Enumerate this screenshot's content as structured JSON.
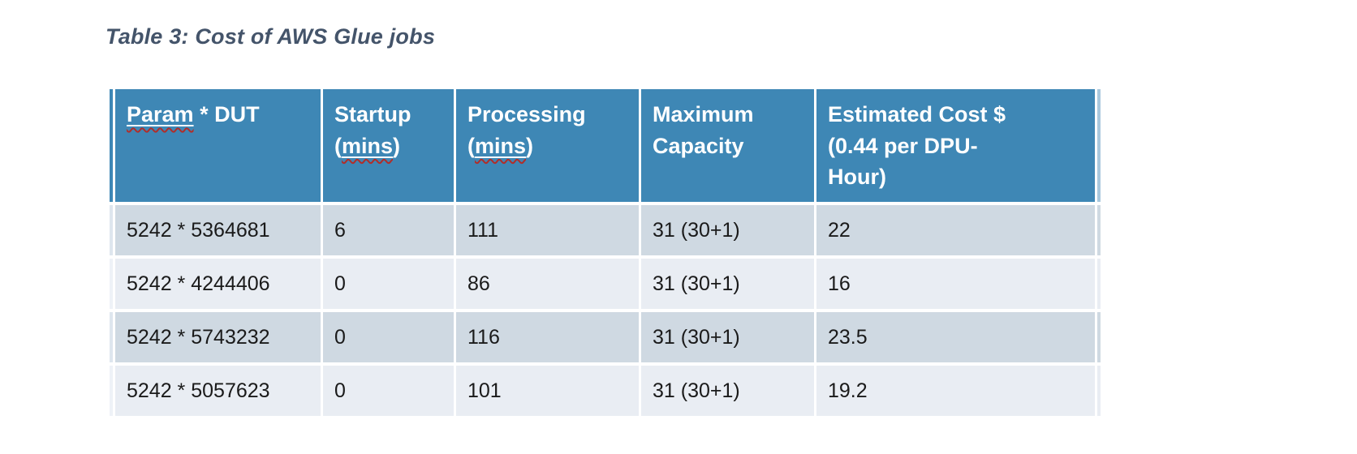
{
  "title": "Table 3: Cost of AWS Glue jobs",
  "table": {
    "header": [
      {
        "pre": "",
        "spell": "Param",
        "post": " * DUT"
      },
      {
        "pre": "Startup (",
        "spell": "mins",
        "post": ")"
      },
      {
        "pre": "Processing (",
        "spell": "mins",
        "post": ")"
      },
      {
        "pre": "Maximum Capacity",
        "spell": "",
        "post": ""
      },
      {
        "pre": "Estimated Cost $ (0.44 per DPU-Hour)",
        "spell": "",
        "post": ""
      }
    ],
    "rows": [
      [
        "5242 * 5364681",
        "6",
        "111",
        "31 (30+1)",
        "22"
      ],
      [
        "5242 * 4244406",
        "0",
        "86",
        "31 (30+1)",
        "16"
      ],
      [
        "5242 * 5743232",
        "0",
        "116",
        "31 (30+1)",
        "23.5"
      ],
      [
        "5242 * 5057623",
        "0",
        "101",
        "31 (30+1)",
        "19.2"
      ]
    ]
  },
  "colors": {
    "header_bg": "#3e87b5",
    "header_text": "#ffffff",
    "row_odd_bg": "#cfd9e2",
    "row_even_bg": "#e9edf3",
    "title_text": "#44546a",
    "body_text": "#1a1a1a",
    "squiggle": "#b02e2a"
  }
}
